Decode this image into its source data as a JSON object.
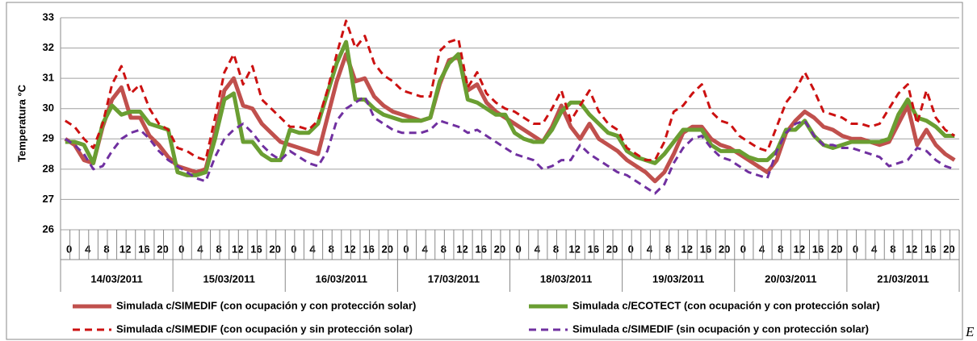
{
  "chart_data": {
    "type": "line",
    "y_axis_label": "Temperatura °C",
    "categories": [
      "0",
      null,
      "4",
      null,
      "8",
      null,
      "12",
      null,
      "16",
      null,
      "20",
      null,
      "0",
      null,
      "4",
      null,
      "8",
      null,
      "12",
      null,
      "16",
      null,
      "20",
      null,
      "0",
      null,
      "4",
      null,
      "8",
      null,
      "12",
      null,
      "16",
      null,
      "20",
      null,
      "0",
      null,
      "4",
      null,
      "8",
      null,
      "12",
      null,
      "16",
      null,
      "20",
      null,
      "0",
      null,
      "4",
      null,
      "8",
      null,
      "12",
      null,
      "16",
      null,
      "20",
      null,
      "0",
      null,
      "4",
      null,
      "8",
      null,
      "12",
      null,
      "16",
      null,
      "20",
      null,
      "0",
      null,
      "4",
      null,
      "8",
      null,
      "12",
      null,
      "16",
      null,
      "20",
      null,
      "0",
      null,
      "4",
      null,
      "8",
      null,
      "12",
      null,
      "16",
      null,
      "20",
      null
    ],
    "groups": [
      "14/03/2011",
      "15/03/2011",
      "16/03/2011",
      "17/03/2011",
      "18/03/2011",
      "19/03/2011",
      "20/03/2011",
      "21/03/2011"
    ],
    "ylim": [
      26,
      33
    ],
    "yticks": [
      26,
      27,
      28,
      29,
      30,
      31,
      32,
      33
    ],
    "grid": true,
    "series": [
      {
        "name": "Simulada c/SIMEDIF (con ocupación y con protección solar)",
        "color": "#c0504d",
        "dash": "solid",
        "values": [
          29.0,
          28.8,
          28.3,
          28.2,
          29.4,
          30.3,
          30.7,
          29.7,
          29.7,
          29.1,
          28.8,
          28.4,
          28.1,
          28.0,
          27.9,
          28.0,
          29.2,
          30.6,
          31.0,
          30.1,
          30.0,
          29.5,
          29.2,
          28.9,
          28.8,
          28.7,
          28.6,
          28.5,
          29.7,
          30.9,
          31.8,
          30.9,
          31.0,
          30.4,
          30.1,
          29.9,
          29.8,
          29.7,
          29.6,
          29.7,
          30.8,
          31.6,
          31.7,
          30.6,
          30.8,
          30.2,
          29.9,
          29.7,
          29.5,
          29.3,
          29.1,
          28.9,
          29.4,
          30.1,
          29.4,
          29.0,
          29.5,
          29.0,
          28.8,
          28.6,
          28.3,
          28.1,
          27.9,
          27.6,
          27.9,
          28.5,
          29.2,
          29.4,
          29.4,
          29.0,
          28.8,
          28.7,
          28.5,
          28.3,
          28.1,
          27.9,
          28.3,
          29.2,
          29.6,
          29.9,
          29.7,
          29.4,
          29.3,
          29.1,
          29.0,
          29.0,
          28.9,
          28.8,
          28.9,
          29.5,
          30.1,
          28.8,
          29.3,
          28.8,
          28.5,
          28.3
        ]
      },
      {
        "name": "Simulada c/ECOTECT (con ocupación y con protección solar)",
        "color": "#6a9e32",
        "dash": "solid",
        "values": [
          28.9,
          28.9,
          28.8,
          28.2,
          29.5,
          30.1,
          29.8,
          29.9,
          29.9,
          29.5,
          29.4,
          29.3,
          27.9,
          27.8,
          27.8,
          27.9,
          29.0,
          30.3,
          30.5,
          28.9,
          28.9,
          28.5,
          28.3,
          28.3,
          29.3,
          29.2,
          29.2,
          29.5,
          30.5,
          31.5,
          32.2,
          30.3,
          30.3,
          30.0,
          29.8,
          29.7,
          29.6,
          29.6,
          29.6,
          29.7,
          30.9,
          31.5,
          31.8,
          30.3,
          30.2,
          30.0,
          29.8,
          29.8,
          29.2,
          29.0,
          28.9,
          28.9,
          29.3,
          29.9,
          30.2,
          30.2,
          29.8,
          29.5,
          29.2,
          29.1,
          28.6,
          28.4,
          28.3,
          28.2,
          28.5,
          28.9,
          29.3,
          29.3,
          29.3,
          28.8,
          28.6,
          28.6,
          28.6,
          28.4,
          28.3,
          28.3,
          28.6,
          29.3,
          29.3,
          29.6,
          29.1,
          28.8,
          28.7,
          28.8,
          28.9,
          28.9,
          28.9,
          28.9,
          29.0,
          29.8,
          30.3,
          29.7,
          29.6,
          29.4,
          29.1,
          29.1
        ]
      },
      {
        "name": "Simulada c/SIMEDIF (con ocupación y sin protección solar)",
        "color": "#cc1111",
        "dash": "dashed",
        "values": [
          29.6,
          29.4,
          29.0,
          28.7,
          29.5,
          30.8,
          31.4,
          30.5,
          30.8,
          30.0,
          29.5,
          29.3,
          28.7,
          28.6,
          28.4,
          28.3,
          29.7,
          31.2,
          31.8,
          30.8,
          31.4,
          30.3,
          30.0,
          29.7,
          29.4,
          29.4,
          29.3,
          29.6,
          30.6,
          31.8,
          32.9,
          32.0,
          32.4,
          31.5,
          31.1,
          30.9,
          30.6,
          30.5,
          30.4,
          30.4,
          31.9,
          32.2,
          32.3,
          30.7,
          31.2,
          30.5,
          30.2,
          30.0,
          29.9,
          29.7,
          29.5,
          29.5,
          30.0,
          30.6,
          29.6,
          30.1,
          30.6,
          29.9,
          29.5,
          29.3,
          28.7,
          28.5,
          28.3,
          28.3,
          28.9,
          29.9,
          30.1,
          30.5,
          30.8,
          29.9,
          29.6,
          29.5,
          29.1,
          28.9,
          28.7,
          28.6,
          29.4,
          30.2,
          30.6,
          31.2,
          30.6,
          29.9,
          29.8,
          29.7,
          29.5,
          29.5,
          29.4,
          29.5,
          30.0,
          30.5,
          30.8,
          29.5,
          30.6,
          29.7,
          29.3,
          29.1
        ]
      },
      {
        "name": "Simulada c/SIMEDIF (sin ocupación y con protección solar)",
        "color": "#7030a0",
        "dash": "dashed",
        "values": [
          29.0,
          28.8,
          28.5,
          28.0,
          28.1,
          28.6,
          29.0,
          29.2,
          29.3,
          29.0,
          28.6,
          28.3,
          28.1,
          27.9,
          27.7,
          27.6,
          28.4,
          29.0,
          29.3,
          29.5,
          29.2,
          28.8,
          28.5,
          28.3,
          28.6,
          28.4,
          28.2,
          28.1,
          28.6,
          29.6,
          30.0,
          30.2,
          30.4,
          29.7,
          29.5,
          29.3,
          29.2,
          29.2,
          29.2,
          29.3,
          29.6,
          29.5,
          29.4,
          29.2,
          29.3,
          29.1,
          28.9,
          28.7,
          28.5,
          28.4,
          28.3,
          28.0,
          28.1,
          28.3,
          28.3,
          28.8,
          28.5,
          28.3,
          28.1,
          27.9,
          27.8,
          27.6,
          27.4,
          27.2,
          27.5,
          28.2,
          28.7,
          29.0,
          29.1,
          28.7,
          28.4,
          28.3,
          28.1,
          27.9,
          27.8,
          27.7,
          28.6,
          29.2,
          29.5,
          29.6,
          29.1,
          28.8,
          28.8,
          28.7,
          28.7,
          28.6,
          28.5,
          28.4,
          28.1,
          28.2,
          28.3,
          28.7,
          28.6,
          28.3,
          28.1,
          28.0
        ]
      }
    ]
  },
  "page_fragment": "E"
}
